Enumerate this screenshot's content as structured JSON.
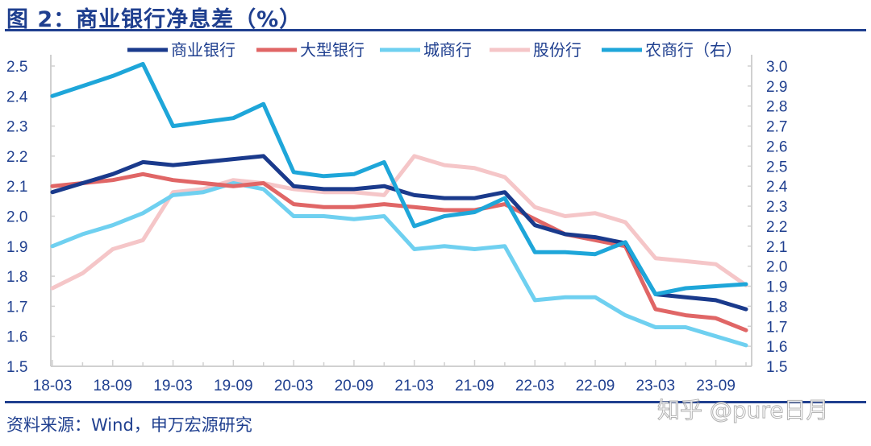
{
  "title": "图 2：商业银行净息差（%）",
  "source": "资料来源：Wind，申万宏源研究",
  "watermark": "知乎 @pure日月",
  "chart_data": {
    "type": "line",
    "title": "图 2：商业银行净息差（%）",
    "xlabel": "",
    "ylabel": "",
    "x": [
      "18-03",
      "18-06",
      "18-09",
      "18-12",
      "19-03",
      "19-06",
      "19-09",
      "19-12",
      "20-03",
      "20-06",
      "20-09",
      "20-12",
      "21-03",
      "21-06",
      "21-09",
      "21-12",
      "22-03",
      "22-06",
      "22-09",
      "22-12",
      "23-03",
      "23-06",
      "23-09",
      "23-12"
    ],
    "x_tick_labels": [
      "18-03",
      "18-09",
      "19-03",
      "19-09",
      "20-03",
      "20-09",
      "21-03",
      "21-09",
      "22-03",
      "22-09",
      "23-03",
      "23-09"
    ],
    "y_left": {
      "ticks": [
        "2.5",
        "2.4",
        "2.3",
        "2.2",
        "2.1",
        "2.0",
        "1.9",
        "1.8",
        "1.7",
        "1.6",
        "1.5"
      ],
      "range": [
        1.5,
        2.5
      ]
    },
    "y_right": {
      "ticks": [
        "3.0",
        "2.9",
        "2.8",
        "2.7",
        "2.6",
        "2.5",
        "2.4",
        "2.3",
        "2.2",
        "2.1",
        "2.0",
        "1.9",
        "1.8",
        "1.7",
        "1.6",
        "1.5"
      ],
      "range": [
        1.5,
        3.0
      ]
    },
    "legend_position": "top",
    "grid": false,
    "series": [
      {
        "name": "商业银行",
        "axis": "left",
        "color": "#1a3a8c",
        "values": [
          2.08,
          2.11,
          2.14,
          2.18,
          2.17,
          2.18,
          2.19,
          2.2,
          2.1,
          2.09,
          2.09,
          2.1,
          2.07,
          2.06,
          2.06,
          2.08,
          1.97,
          1.94,
          1.93,
          1.91,
          1.74,
          1.73,
          1.72,
          1.69
        ]
      },
      {
        "name": "大型银行",
        "axis": "left",
        "color": "#e06666",
        "values": [
          2.1,
          2.11,
          2.12,
          2.14,
          2.12,
          2.11,
          2.1,
          2.11,
          2.04,
          2.03,
          2.03,
          2.04,
          2.03,
          2.02,
          2.02,
          2.04,
          1.99,
          1.94,
          1.92,
          1.9,
          1.69,
          1.67,
          1.66,
          1.62
        ]
      },
      {
        "name": "城商行",
        "axis": "left",
        "color": "#6fd0f0",
        "values": [
          1.9,
          1.94,
          1.97,
          2.01,
          2.07,
          2.08,
          2.11,
          2.09,
          2.0,
          2.0,
          1.99,
          2.0,
          1.89,
          1.9,
          1.89,
          1.9,
          1.72,
          1.73,
          1.73,
          1.67,
          1.63,
          1.63,
          1.6,
          1.57
        ]
      },
      {
        "name": "股份行",
        "axis": "left",
        "color": "#f5c6c8",
        "values": [
          1.76,
          1.81,
          1.89,
          1.92,
          2.08,
          2.09,
          2.12,
          2.11,
          2.09,
          2.08,
          2.08,
          2.07,
          2.2,
          2.17,
          2.16,
          2.13,
          2.03,
          2.0,
          2.01,
          1.98,
          1.86,
          1.85,
          1.84,
          1.77
        ]
      },
      {
        "name": "农商行（右）",
        "axis": "right",
        "color": "#1ea6d9",
        "values": [
          2.85,
          2.9,
          2.95,
          3.01,
          2.7,
          2.72,
          2.74,
          2.81,
          2.47,
          2.45,
          2.46,
          2.52,
          2.2,
          2.25,
          2.27,
          2.34,
          2.07,
          2.07,
          2.06,
          2.12,
          1.86,
          1.89,
          1.9,
          1.91
        ]
      }
    ]
  }
}
